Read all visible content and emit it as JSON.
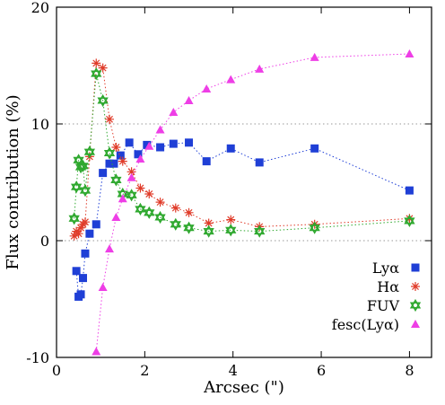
{
  "chart_data": {
    "type": "scatter",
    "xlabel": "Arcsec (\")",
    "ylabel": "Flux contribution (%)",
    "xlim": [
      0,
      8.5
    ],
    "ylim": [
      -10,
      20
    ],
    "xticks": [
      0,
      2,
      4,
      6,
      8
    ],
    "xtick_labels": [
      "0",
      "2",
      "4",
      "6",
      "8"
    ],
    "yticks": [
      -10,
      0,
      10,
      20
    ],
    "ytick_labels": [
      "-10",
      "0",
      "10",
      "20"
    ],
    "gridlines_y": [
      0,
      10
    ],
    "grid": "dotted horizontal",
    "legend_position": "bottom-right",
    "series": [
      {
        "name": "Lyα",
        "marker": "square",
        "color": "#1f3fd6",
        "x": [
          0.45,
          0.5,
          0.55,
          0.6,
          0.65,
          0.75,
          0.9,
          1.05,
          1.2,
          1.3,
          1.45,
          1.65,
          1.85,
          2.05,
          2.35,
          2.65,
          3.0,
          3.4,
          3.95,
          4.6,
          5.85,
          8.0
        ],
        "y": [
          -2.6,
          -4.8,
          -4.6,
          -3.2,
          -1.1,
          0.6,
          1.4,
          5.8,
          6.6,
          6.6,
          7.3,
          8.4,
          7.4,
          8.2,
          8.0,
          8.3,
          8.4,
          6.8,
          7.9,
          6.7,
          7.9,
          4.3
        ]
      },
      {
        "name": "Hα",
        "marker": "star",
        "color": "#e03c2a",
        "x": [
          0.4,
          0.45,
          0.5,
          0.55,
          0.6,
          0.65,
          0.75,
          0.9,
          1.05,
          1.2,
          1.35,
          1.5,
          1.7,
          1.9,
          2.1,
          2.35,
          2.7,
          3.0,
          3.45,
          3.95,
          4.6,
          5.85,
          8.0
        ],
        "y": [
          0.4,
          0.8,
          0.6,
          1.1,
          1.4,
          1.6,
          7.2,
          15.2,
          14.8,
          10.4,
          8.0,
          6.8,
          5.9,
          4.5,
          4.0,
          3.3,
          2.8,
          2.4,
          1.5,
          1.8,
          1.2,
          1.4,
          1.9
        ]
      },
      {
        "name": "FUV",
        "marker": "hexagram",
        "color": "#2ea82e",
        "x": [
          0.4,
          0.45,
          0.5,
          0.55,
          0.6,
          0.65,
          0.75,
          0.9,
          1.05,
          1.2,
          1.35,
          1.5,
          1.7,
          1.9,
          2.1,
          2.35,
          2.7,
          3.0,
          3.45,
          3.95,
          4.6,
          5.85,
          8.0
        ],
        "y": [
          1.9,
          4.6,
          6.9,
          6.3,
          6.4,
          4.3,
          7.6,
          14.3,
          12.0,
          7.5,
          5.2,
          4.0,
          3.9,
          2.7,
          2.4,
          2.0,
          1.4,
          1.1,
          0.8,
          0.9,
          0.8,
          1.1,
          1.7
        ]
      },
      {
        "name": "fesc(Lyα)",
        "marker": "triangle",
        "color": "#ee3ee6",
        "x": [
          0.9,
          1.05,
          1.2,
          1.35,
          1.5,
          1.7,
          1.9,
          2.1,
          2.35,
          2.65,
          3.0,
          3.4,
          3.95,
          4.6,
          5.85,
          8.0
        ],
        "y": [
          -9.5,
          -4.0,
          -0.7,
          2.0,
          3.6,
          5.4,
          7.0,
          8.1,
          9.5,
          11.0,
          12.0,
          13.0,
          13.8,
          14.7,
          15.7,
          16.0
        ]
      }
    ]
  }
}
